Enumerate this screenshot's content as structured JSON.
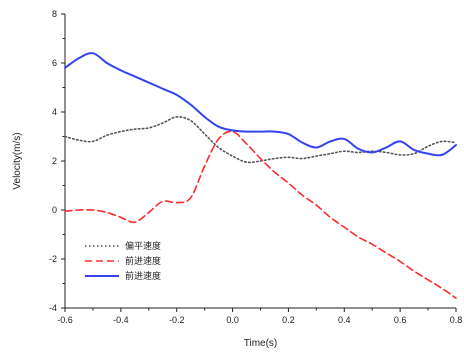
{
  "chart_data": {
    "type": "line",
    "xlabel": "Time(s)",
    "ylabel": "Velocity(m/s)",
    "xlim": [
      -0.6,
      0.8
    ],
    "ylim": [
      -4,
      8
    ],
    "xticks": [
      -0.6,
      -0.4,
      -0.2,
      0.0,
      0.2,
      0.4,
      0.6,
      0.8
    ],
    "xtick_labels": [
      "-0.6",
      "-0.4",
      "-0.2",
      "0.0",
      "0.2",
      "0.4",
      "0.6",
      "0.8"
    ],
    "yticks": [
      -4,
      -2,
      0,
      2,
      4,
      6,
      8
    ],
    "ytick_labels": [
      "-4",
      "-2",
      "0",
      "2",
      "4",
      "6",
      "8"
    ],
    "legend_position": "bottom-left",
    "series": [
      {
        "name": "偏平速度",
        "color": "#555555",
        "dash": "dotted",
        "x": [
          -0.6,
          -0.55,
          -0.5,
          -0.45,
          -0.4,
          -0.35,
          -0.3,
          -0.25,
          -0.2,
          -0.15,
          -0.1,
          -0.05,
          0.0,
          0.05,
          0.1,
          0.15,
          0.2,
          0.25,
          0.3,
          0.35,
          0.4,
          0.45,
          0.5,
          0.55,
          0.6,
          0.65,
          0.7,
          0.75,
          0.8
        ],
        "values": [
          3.0,
          2.85,
          2.8,
          3.05,
          3.2,
          3.3,
          3.35,
          3.55,
          3.8,
          3.65,
          3.1,
          2.55,
          2.2,
          1.95,
          2.0,
          2.1,
          2.15,
          2.1,
          2.2,
          2.3,
          2.4,
          2.35,
          2.4,
          2.35,
          2.25,
          2.3,
          2.6,
          2.8,
          2.75
        ]
      },
      {
        "name": "前进速度",
        "color": "#ff2a2a",
        "dash": "dashed",
        "x": [
          -0.6,
          -0.55,
          -0.5,
          -0.45,
          -0.4,
          -0.35,
          -0.3,
          -0.25,
          -0.2,
          -0.15,
          -0.1,
          -0.05,
          0.0,
          0.05,
          0.1,
          0.15,
          0.2,
          0.25,
          0.3,
          0.35,
          0.4,
          0.45,
          0.5,
          0.55,
          0.6,
          0.65,
          0.7,
          0.75,
          0.8
        ],
        "values": [
          -0.05,
          0.0,
          0.0,
          -0.1,
          -0.3,
          -0.5,
          -0.1,
          0.35,
          0.3,
          0.5,
          1.8,
          2.9,
          3.2,
          2.7,
          2.1,
          1.55,
          1.1,
          0.6,
          0.2,
          -0.3,
          -0.7,
          -1.1,
          -1.4,
          -1.75,
          -2.1,
          -2.5,
          -2.85,
          -3.2,
          -3.6
        ]
      },
      {
        "name": "前进速度",
        "color": "#3344ee",
        "dash": "solid",
        "x": [
          -0.6,
          -0.55,
          -0.5,
          -0.45,
          -0.4,
          -0.35,
          -0.3,
          -0.25,
          -0.2,
          -0.15,
          -0.1,
          -0.05,
          0.0,
          0.05,
          0.1,
          0.15,
          0.2,
          0.25,
          0.3,
          0.35,
          0.4,
          0.45,
          0.5,
          0.55,
          0.6,
          0.65,
          0.7,
          0.75,
          0.8
        ],
        "values": [
          5.8,
          6.2,
          6.4,
          6.0,
          5.7,
          5.45,
          5.2,
          4.95,
          4.7,
          4.3,
          3.8,
          3.4,
          3.25,
          3.2,
          3.2,
          3.2,
          3.1,
          2.75,
          2.55,
          2.8,
          2.9,
          2.5,
          2.35,
          2.55,
          2.8,
          2.45,
          2.3,
          2.25,
          2.65
        ]
      }
    ]
  }
}
